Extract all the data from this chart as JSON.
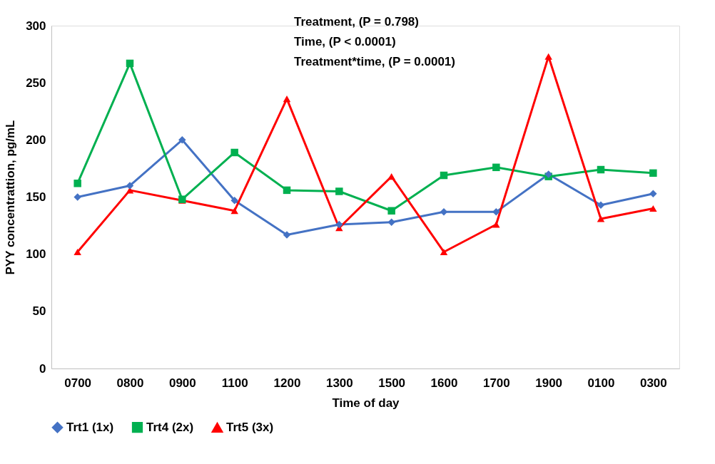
{
  "chart_data": {
    "type": "line",
    "xlabel": "Time of day",
    "ylabel": "PYY concentrattion, pg/mL",
    "categories": [
      "0700",
      "0800",
      "0900",
      "1100",
      "1200",
      "1300",
      "1500",
      "1600",
      "1700",
      "1900",
      "0100",
      "0300"
    ],
    "series": [
      {
        "name": "Trt1 (1x)",
        "color": "#4472c4",
        "marker": "diamond",
        "values": [
          150,
          160,
          200,
          147,
          117,
          126,
          128,
          137,
          137,
          170,
          143,
          153
        ]
      },
      {
        "name": "Trt4 (2x)",
        "color": "#00b050",
        "marker": "square",
        "values": [
          162,
          267,
          148,
          189,
          156,
          155,
          138,
          169,
          176,
          168,
          174,
          171
        ]
      },
      {
        "name": "Trt5 (3x)",
        "color": "#ff0000",
        "marker": "triangle",
        "values": [
          102,
          156,
          147,
          138,
          236,
          123,
          168,
          102,
          126,
          273,
          131,
          140
        ]
      }
    ],
    "ylim": [
      0,
      300
    ],
    "yticks": [
      0,
      50,
      100,
      150,
      200,
      250,
      300
    ],
    "grid": false,
    "legend": "bottom",
    "line_style": "solid",
    "annotations": [
      "Treatment, (P = 0.798)",
      "Time, (P < 0.0001)",
      "Treatment*time, (P = 0.0001)"
    ]
  }
}
